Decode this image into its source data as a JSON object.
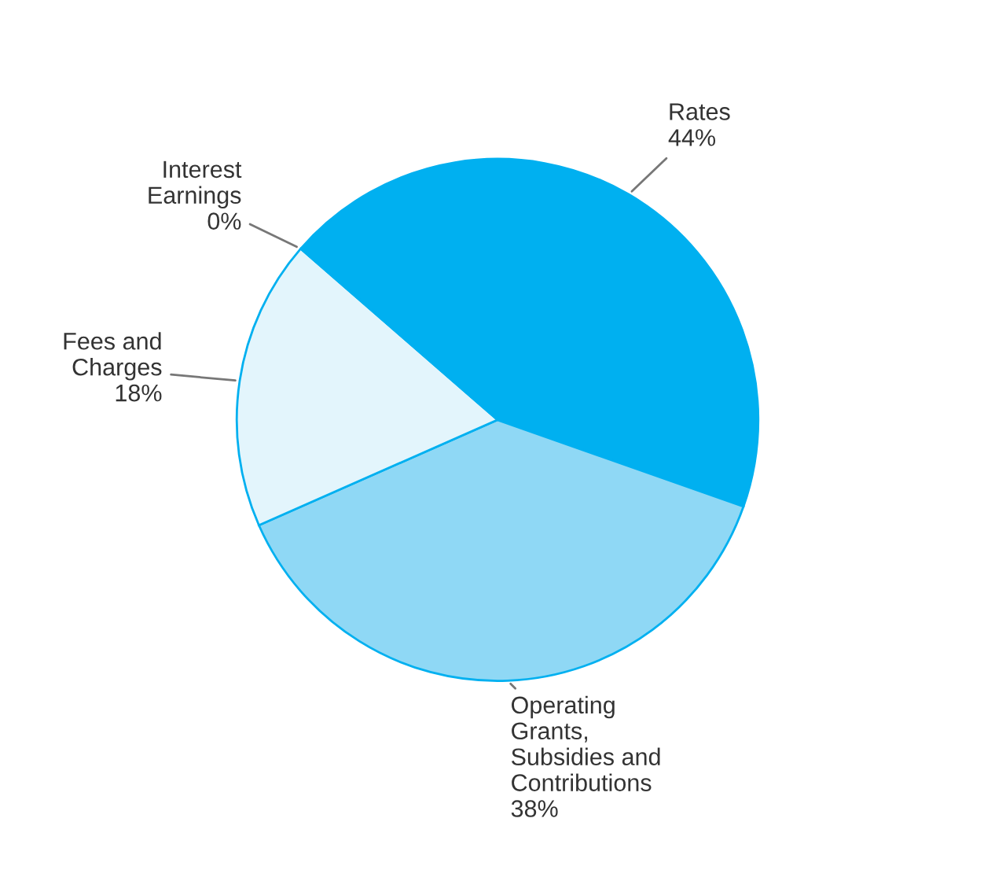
{
  "chart_data": {
    "type": "pie",
    "categories": [
      "Rates",
      "Operating\nGrants,\nSubsidies and\nContributions",
      "Fees and\nCharges",
      "Interest\nEarnings"
    ],
    "values": [
      44,
      38,
      18,
      0
    ],
    "value_labels": [
      "44%",
      "38%",
      "18%",
      "0%"
    ],
    "colors": [
      "#00b0f0",
      "#8fd8f5",
      "#e3f5fc",
      "#00b0f0"
    ],
    "legend": false
  }
}
